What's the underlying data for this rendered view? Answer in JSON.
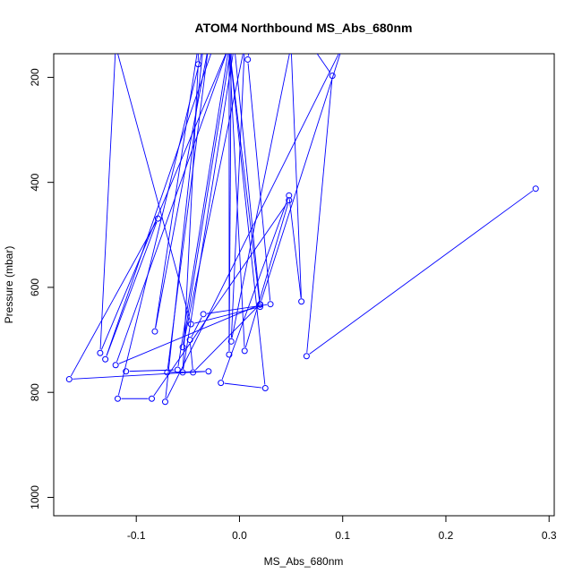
{
  "chart_data": {
    "type": "line",
    "title": "ATOM4 Northbound MS_Abs_680nm",
    "xlabel": "MS_Abs_680nm",
    "ylabel": "Pressure (mbar)",
    "xlim": [
      -0.18,
      0.305
    ],
    "ylim": [
      1035,
      155
    ],
    "y_reversed": true,
    "xticks": [
      -0.1,
      0.0,
      0.1,
      0.2,
      0.3
    ],
    "xtick_labels": [
      "-0.1",
      "0.0",
      "0.1",
      "0.2",
      "0.3"
    ],
    "yticks": [
      200,
      400,
      600,
      800,
      1000
    ],
    "ytick_labels": [
      "200",
      "400",
      "600",
      "800",
      "1000"
    ],
    "grid": false,
    "legend": "none",
    "series": [
      {
        "color": "#0000ff",
        "marker": "open-circle",
        "points": [
          {
            "x": 0.287,
            "y": 412
          },
          {
            "x": 0.065,
            "y": 731
          },
          {
            "x": 0.09,
            "y": 197
          },
          {
            "x": 0.07,
            "y": 140
          },
          {
            "x": -0.025,
            "y": 140
          },
          {
            "x": -0.13,
            "y": 737
          },
          {
            "x": -0.079,
            "y": 469
          },
          {
            "x": -0.165,
            "y": 775
          },
          {
            "x": -0.03,
            "y": 760
          },
          {
            "x": -0.07,
            "y": 762
          },
          {
            "x": -0.03,
            "y": 140
          },
          {
            "x": -0.082,
            "y": 684
          },
          {
            "x": -0.04,
            "y": 140
          },
          {
            "x": -0.04,
            "y": 175
          },
          {
            "x": -0.055,
            "y": 762
          },
          {
            "x": -0.005,
            "y": 140
          },
          {
            "x": 0.02,
            "y": 633
          },
          {
            "x": -0.12,
            "y": 748
          },
          {
            "x": -0.01,
            "y": 140
          },
          {
            "x": -0.01,
            "y": 728
          },
          {
            "x": -0.008,
            "y": 140
          },
          {
            "x": -0.055,
            "y": 714
          },
          {
            "x": 0.005,
            "y": 140
          },
          {
            "x": -0.008,
            "y": 703
          },
          {
            "x": 0.05,
            "y": 140
          },
          {
            "x": 0.06,
            "y": 627
          },
          {
            "x": 0.048,
            "y": 425
          },
          {
            "x": -0.018,
            "y": 782
          },
          {
            "x": 0.025,
            "y": 792
          },
          {
            "x": -0.01,
            "y": 140
          },
          {
            "x": 0.02,
            "y": 637
          },
          {
            "x": -0.047,
            "y": 670
          },
          {
            "x": -0.12,
            "y": 140
          },
          {
            "x": -0.135,
            "y": 725
          },
          {
            "x": -0.01,
            "y": 140
          },
          {
            "x": 0.01,
            "y": 140
          },
          {
            "x": 0.008,
            "y": 166
          },
          {
            "x": 0.03,
            "y": 632
          },
          {
            "x": -0.035,
            "y": 651
          },
          {
            "x": -0.048,
            "y": 700
          },
          {
            "x": -0.045,
            "y": 762
          },
          {
            "x": 0.02,
            "y": 632
          },
          {
            "x": 0.1,
            "y": 140
          },
          {
            "x": -0.072,
            "y": 818
          },
          {
            "x": -0.035,
            "y": 140
          },
          {
            "x": -0.118,
            "y": 812
          },
          {
            "x": -0.085,
            "y": 812
          },
          {
            "x": 0.048,
            "y": 434
          },
          {
            "x": 0.005,
            "y": 721
          },
          {
            "x": -0.01,
            "y": 140
          },
          {
            "x": -0.06,
            "y": 757
          },
          {
            "x": -0.11,
            "y": 760
          }
        ]
      }
    ]
  }
}
